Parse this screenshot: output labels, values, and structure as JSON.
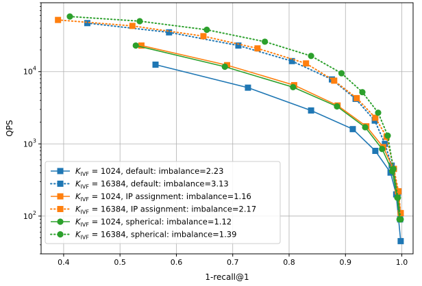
{
  "chart_data": {
    "type": "line",
    "title": "",
    "xlabel": "1-recall@1",
    "ylabel": "QPS",
    "xlim": [
      0.36,
      1.02
    ],
    "ylim": [
      30,
      90000
    ],
    "yscale": "log",
    "grid": true,
    "legend_position": "lower-left",
    "x_ticks": [
      "0.4",
      "0.5",
      "0.6",
      "0.7",
      "0.8",
      "0.9",
      "1.0"
    ],
    "y_ticks": [
      {
        "value": 100,
        "base": "10",
        "exp": "2"
      },
      {
        "value": 1000,
        "base": "10",
        "exp": "3"
      },
      {
        "value": 10000,
        "base": "10",
        "exp": "4"
      }
    ],
    "series": [
      {
        "name": "K_IVF = 1024, default: imbalance=2.23",
        "legend": {
          "sym": "K",
          "sub": "IVF",
          "rest": " = 1024, default: imbalance=2.23"
        },
        "color": "#1f77b4",
        "marker": "square",
        "linestyle": "solid",
        "points": [
          [
            0.563,
            12500
          ],
          [
            0.727,
            6000
          ],
          [
            0.839,
            2900
          ],
          [
            0.913,
            1600
          ],
          [
            0.953,
            800
          ],
          [
            0.98,
            400
          ],
          [
            0.99,
            200
          ],
          [
            0.998,
            45
          ]
        ]
      },
      {
        "name": "K_IVF = 16384, default: imbalance=3.13",
        "legend": {
          "sym": "K",
          "sub": "IVF",
          "rest": " = 16384, default: imbalance=3.13"
        },
        "color": "#1f77b4",
        "marker": "square",
        "linestyle": "dotted",
        "points": [
          [
            0.442,
            47000
          ],
          [
            0.587,
            35000
          ],
          [
            0.71,
            23000
          ],
          [
            0.805,
            14000
          ],
          [
            0.876,
            7800
          ],
          [
            0.918,
            4200
          ],
          [
            0.952,
            2100
          ],
          [
            0.97,
            1000
          ],
          [
            0.982,
            500
          ],
          [
            0.993,
            210
          ],
          [
            0.997,
            90
          ]
        ]
      },
      {
        "name": "K_IVF = 1024, IP assignment: imbalance=1.16",
        "legend": {
          "sym": "K",
          "sub": "IVF",
          "rest": " = 1024, IP assignment: imbalance=1.16"
        },
        "color": "#ff7f0e",
        "marker": "square",
        "linestyle": "solid",
        "points": [
          [
            0.538,
            23000
          ],
          [
            0.69,
            12300
          ],
          [
            0.809,
            6500
          ],
          [
            0.886,
            3400
          ],
          [
            0.937,
            1750
          ],
          [
            0.967,
            900
          ],
          [
            0.985,
            450
          ],
          [
            0.993,
            220
          ],
          [
            0.998,
            110
          ]
        ]
      },
      {
        "name": "K_IVF = 16384, IP assignment: imbalance=2.17",
        "legend": {
          "sym": "K",
          "sub": "IVF",
          "rest": " = 16384, IP assignment: imbalance=2.17"
        },
        "color": "#ff7f0e",
        "marker": "square",
        "linestyle": "dotted",
        "points": [
          [
            0.39,
            52000
          ],
          [
            0.522,
            43000
          ],
          [
            0.648,
            31000
          ],
          [
            0.744,
            21000
          ],
          [
            0.83,
            13000
          ],
          [
            0.88,
            7500
          ],
          [
            0.92,
            4300
          ],
          [
            0.953,
            2300
          ],
          [
            0.973,
            1250
          ],
          [
            0.986,
            450
          ],
          [
            0.994,
            220
          ],
          [
            0.998,
            110
          ]
        ]
      },
      {
        "name": "K_IVF = 1024, spherical: imbalance=1.12",
        "legend": {
          "sym": "K",
          "sub": "IVF",
          "rest": " = 1024, spherical: imbalance=1.12"
        },
        "color": "#2ca02c",
        "marker": "circle",
        "linestyle": "solid",
        "points": [
          [
            0.528,
            23000
          ],
          [
            0.686,
            11700
          ],
          [
            0.807,
            6100
          ],
          [
            0.885,
            3300
          ],
          [
            0.935,
            1700
          ],
          [
            0.965,
            850
          ],
          [
            0.983,
            420
          ],
          [
            0.992,
            180
          ],
          [
            0.996,
            90
          ]
        ]
      },
      {
        "name": "K_IVF = 16384, spherical: imbalance=1.39",
        "legend": {
          "sym": "K",
          "sub": "IVF",
          "rest": " = 16384, spherical: imbalance=1.39"
        },
        "color": "#2ca02c",
        "marker": "circle",
        "linestyle": "dotted",
        "points": [
          [
            0.411,
            58000
          ],
          [
            0.535,
            50000
          ],
          [
            0.654,
            38000
          ],
          [
            0.757,
            26000
          ],
          [
            0.839,
            16500
          ],
          [
            0.893,
            9500
          ],
          [
            0.93,
            5200
          ],
          [
            0.958,
            2700
          ],
          [
            0.975,
            1300
          ],
          [
            0.985,
            450
          ],
          [
            0.993,
            180
          ],
          [
            0.998,
            90
          ]
        ]
      }
    ]
  }
}
